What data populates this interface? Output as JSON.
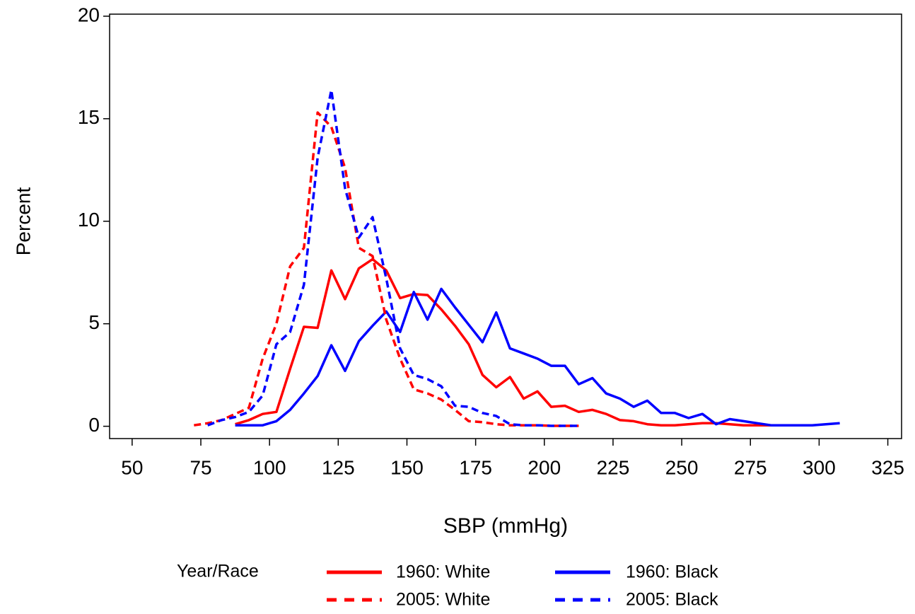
{
  "chart_data": {
    "type": "line",
    "xlabel": "SBP (mmHg)",
    "ylabel": "Percent",
    "xlim": [
      41.8,
      330
    ],
    "xticks": [
      50,
      75,
      100,
      125,
      150,
      175,
      200,
      225,
      250,
      275,
      300,
      325
    ],
    "ylim": [
      -0.6,
      20.1
    ],
    "yticks": [
      0,
      5,
      10,
      15,
      20
    ],
    "legend_title": "Year/Race",
    "series": [
      {
        "name": "1960: White",
        "color": "#ff0000",
        "dashed": false,
        "x": [
          87.5,
          92.5,
          97.5,
          102.5,
          107.5,
          112.5,
          117.5,
          122.5,
          127.5,
          132.5,
          137.5,
          142.5,
          147.5,
          152.5,
          157.5,
          162.5,
          167.5,
          172.5,
          177.5,
          182.5,
          187.5,
          192.5,
          197.5,
          202.5,
          207.5,
          212.5,
          217.5,
          222.5,
          227.5,
          232.5,
          237.5,
          242.5,
          247.5,
          252.5,
          257.5,
          262.5,
          267.5,
          272.5,
          277.5,
          282.5,
          287.5,
          292.5,
          297.5
        ],
        "values": [
          0.1,
          0.3,
          0.6,
          0.7,
          2.8,
          4.85,
          4.8,
          7.6,
          6.2,
          7.7,
          8.15,
          7.6,
          6.25,
          6.45,
          6.4,
          5.7,
          4.9,
          4.0,
          2.5,
          1.9,
          2.4,
          1.35,
          1.7,
          0.95,
          1.0,
          0.7,
          0.8,
          0.6,
          0.3,
          0.25,
          0.1,
          0.05,
          0.05,
          0.1,
          0.15,
          0.15,
          0.1,
          0.05,
          0.05,
          0.05,
          0.05,
          0.05,
          0.05
        ]
      },
      {
        "name": "1960: Black",
        "color": "#0000ff",
        "dashed": false,
        "x": [
          87.5,
          92.5,
          97.5,
          102.5,
          107.5,
          112.5,
          117.5,
          122.5,
          127.5,
          132.5,
          137.5,
          142.5,
          147.5,
          152.5,
          157.5,
          162.5,
          167.5,
          172.5,
          177.5,
          182.5,
          187.5,
          192.5,
          197.5,
          202.5,
          207.5,
          212.5,
          217.5,
          222.5,
          227.5,
          232.5,
          237.5,
          242.5,
          247.5,
          252.5,
          257.5,
          262.5,
          267.5,
          272.5,
          277.5,
          282.5,
          287.5,
          292.5,
          297.5,
          302.5,
          307.5
        ],
        "values": [
          0.05,
          0.05,
          0.05,
          0.25,
          0.8,
          1.6,
          2.45,
          3.95,
          2.7,
          4.15,
          4.9,
          5.6,
          4.6,
          6.55,
          5.2,
          6.7,
          5.8,
          4.95,
          4.1,
          5.55,
          3.8,
          3.55,
          3.3,
          2.95,
          2.95,
          2.05,
          2.35,
          1.6,
          1.35,
          0.95,
          1.25,
          0.65,
          0.65,
          0.4,
          0.6,
          0.1,
          0.35,
          0.25,
          0.15,
          0.05,
          0.05,
          0.05,
          0.05,
          0.1,
          0.15
        ]
      },
      {
        "name": "2005: White",
        "color": "#ff0000",
        "dashed": true,
        "x": [
          72.5,
          77.5,
          82.5,
          87.5,
          92.5,
          97.5,
          102.5,
          107.5,
          112.5,
          117.5,
          122.5,
          127.5,
          132.5,
          137.5,
          142.5,
          147.5,
          152.5,
          157.5,
          162.5,
          167.5,
          172.5,
          177.5,
          182.5,
          187.5,
          192.5,
          197.5,
          202.5,
          207.5,
          212.5
        ],
        "values": [
          0.05,
          0.15,
          0.3,
          0.6,
          0.9,
          3.3,
          5.0,
          7.8,
          8.7,
          15.3,
          14.6,
          12.6,
          8.7,
          8.3,
          5.2,
          3.3,
          1.8,
          1.6,
          1.3,
          0.8,
          0.25,
          0.2,
          0.1,
          0.05,
          0.05,
          0.05,
          0.02,
          0.02,
          0.02
        ]
      },
      {
        "name": "2005: Black",
        "color": "#0000ff",
        "dashed": true,
        "x": [
          77.5,
          82.5,
          87.5,
          92.5,
          97.5,
          102.5,
          107.5,
          112.5,
          117.5,
          122.5,
          127.5,
          132.5,
          137.5,
          142.5,
          147.5,
          152.5,
          157.5,
          162.5,
          167.5,
          172.5,
          177.5,
          182.5,
          187.5,
          192.5,
          197.5,
          202.5,
          207.5,
          212.5
        ],
        "values": [
          0.05,
          0.3,
          0.45,
          0.7,
          1.5,
          4.0,
          4.6,
          6.9,
          13.1,
          16.4,
          11.6,
          9.2,
          10.2,
          7.2,
          3.8,
          2.5,
          2.3,
          1.95,
          1.0,
          0.95,
          0.65,
          0.5,
          0.1,
          0.05,
          0.05,
          0.02,
          0.02,
          0.02
        ]
      }
    ]
  }
}
